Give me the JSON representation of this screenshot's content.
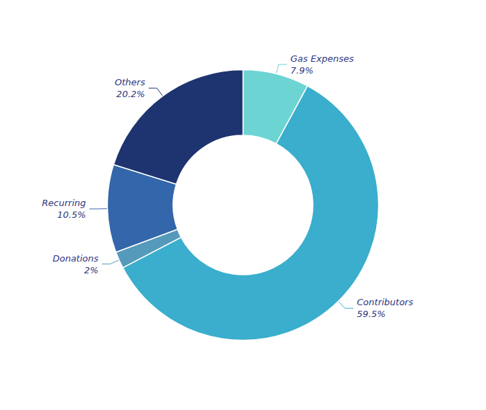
{
  "chart_data": {
    "type": "donut",
    "categories": [
      "Gas Expenses",
      "Contributors",
      "Donations",
      "Recurring",
      "Others"
    ],
    "values": [
      7.9,
      59.5,
      2.0,
      10.5,
      20.2
    ],
    "value_labels": [
      "7.9%",
      "59.5%",
      "2%",
      "10.5%",
      "20.2%"
    ],
    "colors": [
      "#6DD4D4",
      "#3AAECC",
      "#5599BB",
      "#3366AA",
      "#1E3470"
    ],
    "data_labels": true
  }
}
